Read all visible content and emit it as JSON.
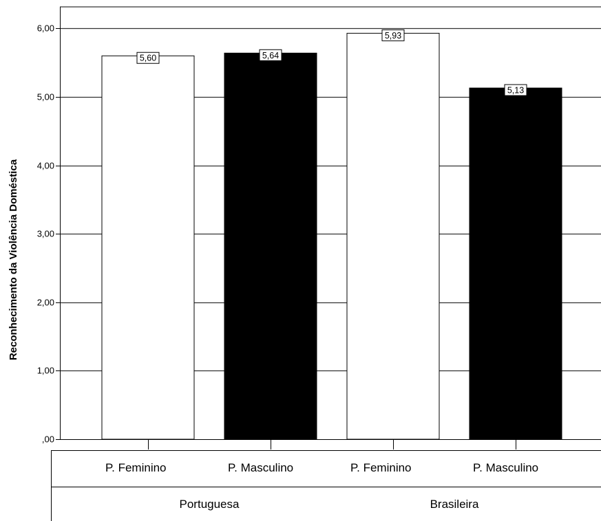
{
  "chart_data": {
    "type": "bar",
    "title": "",
    "ylabel": "Reconhecimento da Violência Doméstica",
    "ylim": [
      0,
      6.3
    ],
    "yticks": [
      0,
      1,
      2,
      3,
      4,
      5,
      6
    ],
    "ytick_labels": [
      ",00",
      "1,00",
      "2,00",
      "3,00",
      "4,00",
      "5,00",
      "6,00"
    ],
    "grid": true,
    "categories": [
      {
        "label": "P. Feminino",
        "group": "Portuguesa",
        "value": 5.6,
        "value_label": "5,60",
        "fill": "#ffffff"
      },
      {
        "label": "P. Masculino",
        "group": "Portuguesa",
        "value": 5.64,
        "value_label": "5,64",
        "fill": "#000000"
      },
      {
        "label": "P. Feminino",
        "group": "Brasileira",
        "value": 5.93,
        "value_label": "5,93",
        "fill": "#ffffff"
      },
      {
        "label": "P. Masculino",
        "group": "Brasileira",
        "value": 5.13,
        "value_label": "5,13",
        "fill": "#000000"
      }
    ],
    "groups": [
      "Portuguesa",
      "Brasileira"
    ]
  }
}
